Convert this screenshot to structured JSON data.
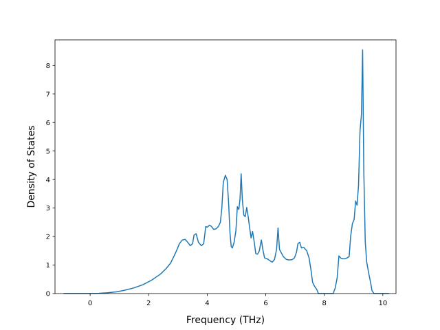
{
  "chart_data": {
    "type": "line",
    "title": "",
    "xlabel": "Frequency (THz)",
    "ylabel": "Density of States",
    "xlim": [
      -1.2,
      10.45
    ],
    "ylim": [
      0,
      8.9
    ],
    "xticks": [
      0,
      2,
      4,
      6,
      8,
      10
    ],
    "yticks": [
      0,
      1,
      2,
      3,
      4,
      5,
      6,
      7,
      8
    ],
    "grid": false,
    "legend": "none",
    "series": [
      {
        "color": "#1f77b4",
        "points": [
          [
            -0.9,
            0.0
          ],
          [
            -0.5,
            0.0
          ],
          [
            0.0,
            0.0
          ],
          [
            0.3,
            0.01
          ],
          [
            0.6,
            0.03
          ],
          [
            0.9,
            0.06
          ],
          [
            1.2,
            0.12
          ],
          [
            1.5,
            0.2
          ],
          [
            1.8,
            0.31
          ],
          [
            2.1,
            0.47
          ],
          [
            2.4,
            0.68
          ],
          [
            2.6,
            0.88
          ],
          [
            2.75,
            1.07
          ],
          [
            2.85,
            1.28
          ],
          [
            2.95,
            1.5
          ],
          [
            3.05,
            1.75
          ],
          [
            3.15,
            1.88
          ],
          [
            3.25,
            1.9
          ],
          [
            3.35,
            1.78
          ],
          [
            3.42,
            1.68
          ],
          [
            3.5,
            1.75
          ],
          [
            3.55,
            2.05
          ],
          [
            3.62,
            2.1
          ],
          [
            3.7,
            1.8
          ],
          [
            3.8,
            1.68
          ],
          [
            3.88,
            1.75
          ],
          [
            3.95,
            2.35
          ],
          [
            4.0,
            2.33
          ],
          [
            4.08,
            2.4
          ],
          [
            4.15,
            2.35
          ],
          [
            4.22,
            2.25
          ],
          [
            4.3,
            2.27
          ],
          [
            4.38,
            2.35
          ],
          [
            4.45,
            2.5
          ],
          [
            4.5,
            3.0
          ],
          [
            4.55,
            3.9
          ],
          [
            4.62,
            4.15
          ],
          [
            4.68,
            4.0
          ],
          [
            4.73,
            3.2
          ],
          [
            4.78,
            2.1
          ],
          [
            4.82,
            1.65
          ],
          [
            4.86,
            1.6
          ],
          [
            4.92,
            1.8
          ],
          [
            4.98,
            2.2
          ],
          [
            5.03,
            3.05
          ],
          [
            5.08,
            2.95
          ],
          [
            5.12,
            3.3
          ],
          [
            5.16,
            4.2
          ],
          [
            5.2,
            3.3
          ],
          [
            5.25,
            2.75
          ],
          [
            5.3,
            2.7
          ],
          [
            5.35,
            3.02
          ],
          [
            5.4,
            2.7
          ],
          [
            5.45,
            2.3
          ],
          [
            5.5,
            1.95
          ],
          [
            5.55,
            2.18
          ],
          [
            5.6,
            1.85
          ],
          [
            5.66,
            1.4
          ],
          [
            5.72,
            1.38
          ],
          [
            5.78,
            1.5
          ],
          [
            5.85,
            1.88
          ],
          [
            5.9,
            1.55
          ],
          [
            5.96,
            1.25
          ],
          [
            6.05,
            1.22
          ],
          [
            6.15,
            1.15
          ],
          [
            6.22,
            1.1
          ],
          [
            6.3,
            1.2
          ],
          [
            6.37,
            1.55
          ],
          [
            6.42,
            2.3
          ],
          [
            6.47,
            1.55
          ],
          [
            6.52,
            1.45
          ],
          [
            6.6,
            1.3
          ],
          [
            6.7,
            1.2
          ],
          [
            6.8,
            1.18
          ],
          [
            6.9,
            1.19
          ],
          [
            6.98,
            1.25
          ],
          [
            7.05,
            1.45
          ],
          [
            7.1,
            1.75
          ],
          [
            7.16,
            1.8
          ],
          [
            7.22,
            1.6
          ],
          [
            7.3,
            1.62
          ],
          [
            7.4,
            1.5
          ],
          [
            7.48,
            1.25
          ],
          [
            7.55,
            0.8
          ],
          [
            7.6,
            0.4
          ],
          [
            7.67,
            0.25
          ],
          [
            7.74,
            0.15
          ],
          [
            7.8,
            0.0
          ],
          [
            8.1,
            0.0
          ],
          [
            8.3,
            0.0
          ],
          [
            8.37,
            0.18
          ],
          [
            8.44,
            0.55
          ],
          [
            8.5,
            1.32
          ],
          [
            8.56,
            1.25
          ],
          [
            8.62,
            1.22
          ],
          [
            8.7,
            1.22
          ],
          [
            8.78,
            1.25
          ],
          [
            8.85,
            1.3
          ],
          [
            8.9,
            2.0
          ],
          [
            8.96,
            2.45
          ],
          [
            9.02,
            2.6
          ],
          [
            9.07,
            3.25
          ],
          [
            9.12,
            3.1
          ],
          [
            9.17,
            3.8
          ],
          [
            9.22,
            5.7
          ],
          [
            9.27,
            6.3
          ],
          [
            9.31,
            8.55
          ],
          [
            9.35,
            4.3
          ],
          [
            9.4,
            1.8
          ],
          [
            9.45,
            1.1
          ],
          [
            9.52,
            0.7
          ],
          [
            9.58,
            0.4
          ],
          [
            9.63,
            0.1
          ],
          [
            9.7,
            0.0
          ],
          [
            10.0,
            0.0
          ],
          [
            10.2,
            0.0
          ]
        ]
      }
    ]
  }
}
